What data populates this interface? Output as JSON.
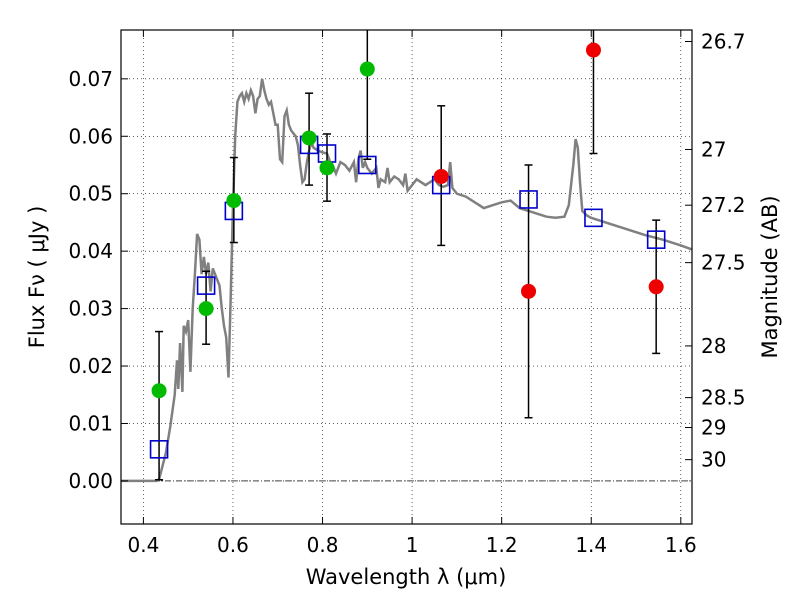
{
  "chart_data": {
    "type": "scatter",
    "xlabel": "Wavelength  λ (μm)",
    "ylabel": "Flux  Fν  ( μJy )",
    "y2label": "Magnitude (AB)",
    "xlim": [
      0.35,
      1.625
    ],
    "ylim": [
      -0.0075,
      0.0785
    ],
    "xticks": [
      {
        "value": 0.4,
        "label": "0.4"
      },
      {
        "value": 0.6,
        "label": "0.6"
      },
      {
        "value": 0.8,
        "label": "0.8"
      },
      {
        "value": 1.0,
        "label": "1"
      },
      {
        "value": 1.2,
        "label": "1.2"
      },
      {
        "value": 1.4,
        "label": "1.4"
      },
      {
        "value": 1.6,
        "label": "1.6"
      }
    ],
    "yticks": [
      {
        "value": 0.0,
        "label": "0.00"
      },
      {
        "value": 0.01,
        "label": "0.01"
      },
      {
        "value": 0.02,
        "label": "0.02"
      },
      {
        "value": 0.03,
        "label": "0.03"
      },
      {
        "value": 0.04,
        "label": "0.04"
      },
      {
        "value": 0.05,
        "label": "0.05"
      },
      {
        "value": 0.06,
        "label": "0.06"
      },
      {
        "value": 0.07,
        "label": "0.07"
      }
    ],
    "y2ticks": [
      {
        "flux": 0.0765,
        "label": "26.7"
      },
      {
        "flux": 0.0577,
        "label": "27"
      },
      {
        "flux": 0.048,
        "label": "27.2"
      },
      {
        "flux": 0.038,
        "label": "27.5"
      },
      {
        "flux": 0.0235,
        "label": "28"
      },
      {
        "flux": 0.0145,
        "label": "28.5"
      },
      {
        "flux": 0.0093,
        "label": "29"
      },
      {
        "flux": 0.0037,
        "label": "30"
      }
    ],
    "grid": true,
    "template_spectrum": {
      "color": "#808080",
      "points": [
        [
          0.35,
          0.0
        ],
        [
          0.4,
          0.0
        ],
        [
          0.43,
          0.0
        ],
        [
          0.435,
          0.0003
        ],
        [
          0.45,
          0.0048
        ],
        [
          0.46,
          0.0095
        ],
        [
          0.47,
          0.015
        ],
        [
          0.475,
          0.021
        ],
        [
          0.478,
          0.016
        ],
        [
          0.482,
          0.024
        ],
        [
          0.487,
          0.0155
        ],
        [
          0.49,
          0.027
        ],
        [
          0.495,
          0.026
        ],
        [
          0.5,
          0.028
        ],
        [
          0.505,
          0.019
        ],
        [
          0.51,
          0.03
        ],
        [
          0.515,
          0.036
        ],
        [
          0.52,
          0.043
        ],
        [
          0.525,
          0.042
        ],
        [
          0.53,
          0.036
        ],
        [
          0.535,
          0.039
        ],
        [
          0.54,
          0.036
        ],
        [
          0.545,
          0.038
        ],
        [
          0.55,
          0.033
        ],
        [
          0.555,
          0.037
        ],
        [
          0.56,
          0.036
        ],
        [
          0.565,
          0.035
        ],
        [
          0.57,
          0.034
        ],
        [
          0.575,
          0.03
        ],
        [
          0.58,
          0.027
        ],
        [
          0.585,
          0.025
        ],
        [
          0.59,
          0.018
        ],
        [
          0.595,
          0.032
        ],
        [
          0.6,
          0.048
        ],
        [
          0.605,
          0.06
        ],
        [
          0.61,
          0.066
        ],
        [
          0.615,
          0.067
        ],
        [
          0.62,
          0.0675
        ],
        [
          0.625,
          0.066
        ],
        [
          0.63,
          0.0675
        ],
        [
          0.635,
          0.0665
        ],
        [
          0.64,
          0.068
        ],
        [
          0.645,
          0.067
        ],
        [
          0.65,
          0.064
        ],
        [
          0.655,
          0.0665
        ],
        [
          0.66,
          0.067
        ],
        [
          0.665,
          0.07
        ],
        [
          0.67,
          0.068
        ],
        [
          0.675,
          0.0665
        ],
        [
          0.68,
          0.0655
        ],
        [
          0.685,
          0.066
        ],
        [
          0.69,
          0.064
        ],
        [
          0.695,
          0.062
        ],
        [
          0.7,
          0.062
        ],
        [
          0.705,
          0.056
        ],
        [
          0.71,
          0.0555
        ],
        [
          0.715,
          0.0635
        ],
        [
          0.72,
          0.0645
        ],
        [
          0.725,
          0.062
        ],
        [
          0.73,
          0.061
        ],
        [
          0.74,
          0.06
        ],
        [
          0.745,
          0.0585
        ],
        [
          0.75,
          0.055
        ],
        [
          0.755,
          0.052
        ],
        [
          0.76,
          0.0525
        ],
        [
          0.765,
          0.0555
        ],
        [
          0.77,
          0.0575
        ],
        [
          0.775,
          0.059
        ],
        [
          0.78,
          0.058
        ],
        [
          0.79,
          0.0575
        ],
        [
          0.8,
          0.0572
        ],
        [
          0.81,
          0.057
        ],
        [
          0.815,
          0.056
        ],
        [
          0.82,
          0.054
        ],
        [
          0.825,
          0.0545
        ],
        [
          0.83,
          0.0535
        ],
        [
          0.84,
          0.0555
        ],
        [
          0.85,
          0.055
        ],
        [
          0.86,
          0.054
        ],
        [
          0.87,
          0.0555
        ],
        [
          0.875,
          0.052
        ],
        [
          0.88,
          0.056
        ],
        [
          0.885,
          0.0575
        ],
        [
          0.89,
          0.0545
        ],
        [
          0.895,
          0.0555
        ],
        [
          0.9,
          0.0545
        ],
        [
          0.91,
          0.0535
        ],
        [
          0.92,
          0.0545
        ],
        [
          0.925,
          0.051
        ],
        [
          0.93,
          0.0525
        ],
        [
          0.94,
          0.052
        ],
        [
          0.945,
          0.0545
        ],
        [
          0.95,
          0.052
        ],
        [
          0.96,
          0.053
        ],
        [
          0.97,
          0.0525
        ],
        [
          0.98,
          0.0515
        ],
        [
          0.985,
          0.0535
        ],
        [
          0.99,
          0.0505
        ],
        [
          1.0,
          0.0515
        ],
        [
          1.01,
          0.0525
        ],
        [
          1.02,
          0.052
        ],
        [
          1.03,
          0.0515
        ],
        [
          1.04,
          0.052
        ],
        [
          1.05,
          0.0525
        ],
        [
          1.06,
          0.0515
        ],
        [
          1.07,
          0.0512
        ],
        [
          1.08,
          0.0515
        ],
        [
          1.085,
          0.0555
        ],
        [
          1.09,
          0.051
        ],
        [
          1.1,
          0.05
        ],
        [
          1.12,
          0.0495
        ],
        [
          1.14,
          0.0485
        ],
        [
          1.16,
          0.0475
        ],
        [
          1.18,
          0.048
        ],
        [
          1.2,
          0.0485
        ],
        [
          1.22,
          0.0488
        ],
        [
          1.24,
          0.0475
        ],
        [
          1.26,
          0.047
        ],
        [
          1.28,
          0.0465
        ],
        [
          1.3,
          0.046
        ],
        [
          1.32,
          0.0458
        ],
        [
          1.34,
          0.046
        ],
        [
          1.35,
          0.048
        ],
        [
          1.36,
          0.055
        ],
        [
          1.365,
          0.0595
        ],
        [
          1.37,
          0.058
        ],
        [
          1.375,
          0.052
        ],
        [
          1.38,
          0.047
        ],
        [
          1.39,
          0.0462
        ],
        [
          1.4,
          0.0458
        ],
        [
          1.44,
          0.0448
        ],
        [
          1.48,
          0.0438
        ],
        [
          1.52,
          0.0428
        ],
        [
          1.56,
          0.042
        ],
        [
          1.6,
          0.041
        ],
        [
          1.625,
          0.0403
        ]
      ]
    },
    "series": [
      {
        "marker": "square",
        "color": "#0000cc",
        "points": [
          {
            "x": 0.435,
            "y": 0.0055
          },
          {
            "x": 0.54,
            "y": 0.034
          },
          {
            "x": 0.602,
            "y": 0.047
          },
          {
            "x": 0.77,
            "y": 0.0585
          },
          {
            "x": 0.81,
            "y": 0.057
          },
          {
            "x": 0.9,
            "y": 0.055
          },
          {
            "x": 1.065,
            "y": 0.0515
          },
          {
            "x": 1.26,
            "y": 0.049
          },
          {
            "x": 1.405,
            "y": 0.0458
          },
          {
            "x": 1.545,
            "y": 0.042
          }
        ]
      },
      {
        "marker": "circle",
        "color": "#00bb00",
        "points": [
          {
            "x": 0.435,
            "y": 0.0157,
            "yerr_low": 0.0002,
            "yerr_high": 0.026
          },
          {
            "x": 0.54,
            "y": 0.03,
            "yerr_low": 0.0238,
            "yerr_high": 0.0365
          },
          {
            "x": 0.602,
            "y": 0.0488,
            "yerr_low": 0.0415,
            "yerr_high": 0.0563
          },
          {
            "x": 0.77,
            "y": 0.0597,
            "yerr_low": 0.0515,
            "yerr_high": 0.0675
          },
          {
            "x": 0.81,
            "y": 0.0545,
            "yerr_low": 0.0487,
            "yerr_high": 0.0604
          },
          {
            "x": 0.9,
            "y": 0.0717,
            "yerr_low": 0.056,
            "yerr_high": 0.0785
          }
        ]
      },
      {
        "marker": "circle",
        "color": "#ee0000",
        "points": [
          {
            "x": 1.065,
            "y": 0.053,
            "yerr_low": 0.041,
            "yerr_high": 0.0653
          },
          {
            "x": 1.26,
            "y": 0.033,
            "yerr_low": 0.011,
            "yerr_high": 0.055
          },
          {
            "x": 1.405,
            "y": 0.075,
            "yerr_low": 0.057,
            "yerr_high": 0.0785
          },
          {
            "x": 1.545,
            "y": 0.0338,
            "yerr_low": 0.0222,
            "yerr_high": 0.0454
          }
        ]
      }
    ]
  }
}
